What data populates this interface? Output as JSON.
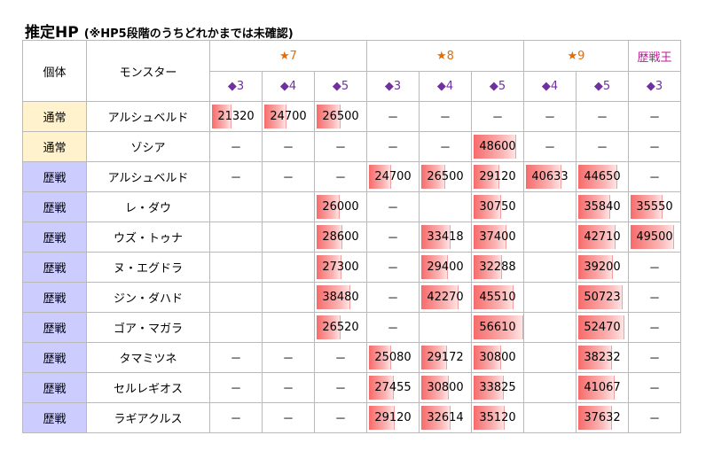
{
  "title": {
    "main": "推定HP",
    "sub": "(※HP5段階のうちどれかまでは未確認)"
  },
  "header": {
    "col_type": "個体",
    "col_monster": "モンスター",
    "groups": [
      {
        "label": "★7",
        "color": "#e26b0a"
      },
      {
        "label": "★8",
        "color": "#e26b0a"
      },
      {
        "label": "★9",
        "color": "#e26b0a"
      },
      {
        "label": "歴戦王",
        "color": "#c0189a"
      }
    ],
    "subcols": [
      "◆3",
      "◆4",
      "◆5",
      "◆3",
      "◆4",
      "◆5",
      "◆4",
      "◆5",
      "◆3"
    ]
  },
  "bar_max": 56610,
  "rows": [
    {
      "type": "通常",
      "kind": "normal",
      "monster": "アルシュベルド",
      "cells": [
        21320,
        24700,
        26500,
        "－",
        "－",
        "－",
        "－",
        "－",
        "－"
      ]
    },
    {
      "type": "通常",
      "kind": "normal",
      "monster": "ゾシア",
      "cells": [
        "－",
        "－",
        "－",
        "－",
        "－",
        48600,
        "－",
        "－",
        "－"
      ]
    },
    {
      "type": "歴戦",
      "kind": "veteran",
      "monster": "アルシュベルド",
      "cells": [
        "－",
        "－",
        "－",
        24700,
        26500,
        29120,
        40633,
        44650,
        "－"
      ]
    },
    {
      "type": "歴戦",
      "kind": "veteran",
      "monster": "レ・ダウ",
      "cells": [
        "",
        "",
        26000,
        "－",
        "",
        30750,
        "",
        35840,
        35550
      ]
    },
    {
      "type": "歴戦",
      "kind": "veteran",
      "monster": "ウズ・トゥナ",
      "cells": [
        "",
        "",
        28600,
        "－",
        33418,
        37400,
        "",
        42710,
        49500
      ]
    },
    {
      "type": "歴戦",
      "kind": "veteran",
      "monster": "ヌ・エグドラ",
      "cells": [
        "",
        "",
        27300,
        "－",
        29400,
        32288,
        "",
        39200,
        "－"
      ]
    },
    {
      "type": "歴戦",
      "kind": "veteran",
      "monster": "ジン・ダハド",
      "cells": [
        "",
        "",
        38480,
        "－",
        42270,
        45510,
        "",
        50723,
        "－"
      ]
    },
    {
      "type": "歴戦",
      "kind": "veteran",
      "monster": "ゴア・マガラ",
      "cells": [
        "",
        "",
        26520,
        "－",
        "",
        56610,
        "",
        52470,
        "－"
      ]
    },
    {
      "type": "歴戦",
      "kind": "veteran",
      "monster": "タマミツネ",
      "cells": [
        "－",
        "－",
        "－",
        25080,
        29172,
        30800,
        "",
        38232,
        "－"
      ]
    },
    {
      "type": "歴戦",
      "kind": "veteran",
      "monster": "セルレギオス",
      "cells": [
        "－",
        "－",
        "－",
        27455,
        30800,
        33825,
        "",
        41067,
        "－"
      ]
    },
    {
      "type": "歴戦",
      "kind": "veteran",
      "monster": "ラギアクルス",
      "cells": [
        "－",
        "－",
        "－",
        29120,
        32614,
        35120,
        "",
        37632,
        "－"
      ]
    }
  ]
}
